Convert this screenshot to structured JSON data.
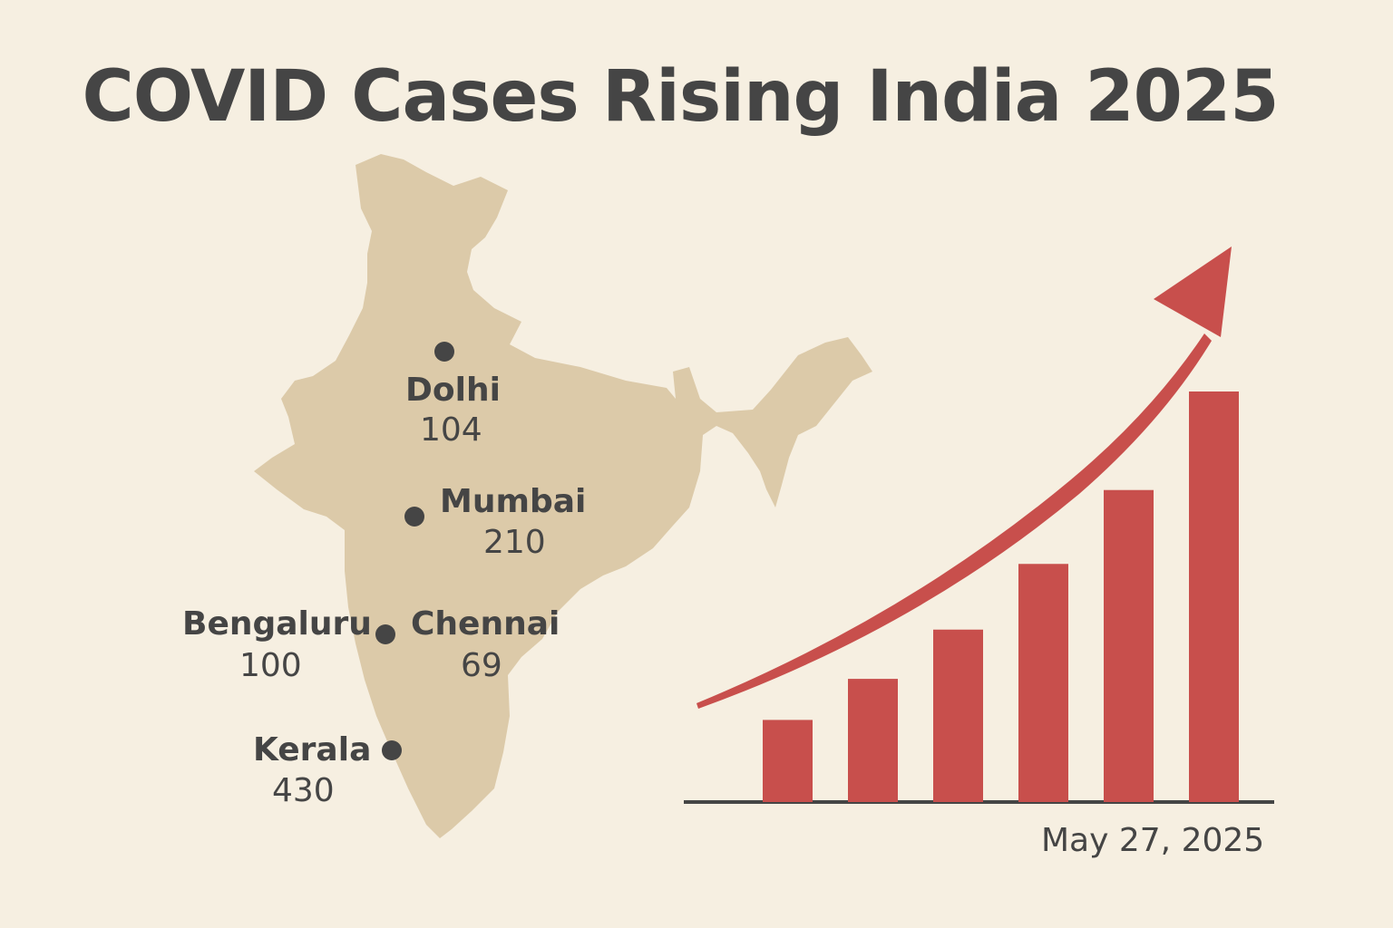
{
  "title": "COVID Cases Rising India 2025",
  "cities": [
    {
      "name": "Dolhi",
      "count": "104"
    },
    {
      "name": "Mumbai",
      "count": "210"
    },
    {
      "name": "Bengaluru",
      "count": "100"
    },
    {
      "name": "Chennai",
      "count": "69"
    },
    {
      "name": "Kerala",
      "count": "430"
    }
  ],
  "date": "May 27, 2025",
  "chart_data": {
    "type": "bar",
    "values": [
      1,
      1.5,
      2.1,
      2.9,
      3.8,
      5.0
    ],
    "trend": "rising",
    "xlabel": "",
    "ylabel": ""
  },
  "colors": {
    "background": "#f6efe1",
    "map": "#dccaa9",
    "bar": "#c84f4c",
    "text": "#454545"
  }
}
